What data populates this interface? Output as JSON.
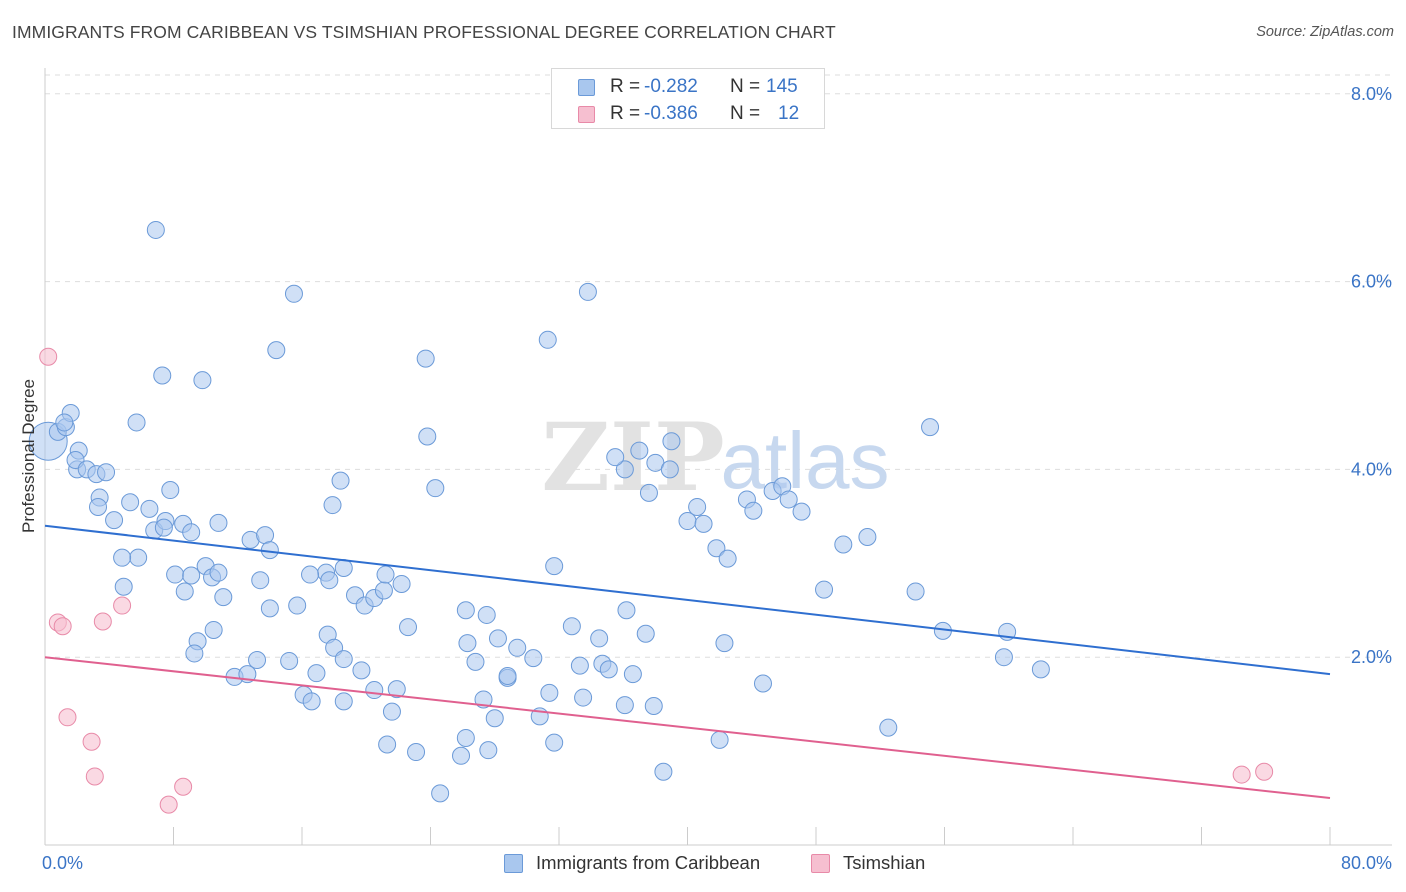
{
  "title": "IMMIGRANTS FROM CARIBBEAN VS TSIMSHIAN PROFESSIONAL DEGREE CORRELATION CHART",
  "source": "Source: ZipAtlas.com",
  "watermark": {
    "zip": "ZIP",
    "atlas": "atlas"
  },
  "legend_stats": [
    {
      "r_label": "R =",
      "r_value": "-0.282",
      "n_label": "N =",
      "n_value": "145"
    },
    {
      "r_label": "R =",
      "r_value": "-0.386",
      "n_label": "N =",
      "n_value": "12"
    }
  ],
  "colors": {
    "blue_fill": "#a9c7ee",
    "blue_stroke": "#6b9ad8",
    "blue_line": "#2f6fd0",
    "pink_fill": "#f6bfd0",
    "pink_stroke": "#e88aa8",
    "pink_line": "#e0608f",
    "tick_text": "#3a74c6",
    "grid": "#dddddd"
  },
  "chart_data": {
    "type": "scatter",
    "title": "IMMIGRANTS FROM CARIBBEAN VS TSIMSHIAN PROFESSIONAL DEGREE CORRELATION CHART",
    "xlabel": "",
    "ylabel": "Professional Degree",
    "xlim": [
      0,
      80
    ],
    "ylim": [
      0,
      8.2
    ],
    "x_tick_labels": [
      "0.0%",
      "80.0%"
    ],
    "y_ticks": [
      2,
      4,
      6,
      8
    ],
    "y_tick_labels": [
      "2.0%",
      "4.0%",
      "6.0%",
      "8.0%"
    ],
    "grid": "horizontal dashed",
    "legend_position": "bottom",
    "series": [
      {
        "name": "Immigrants from Caribbean",
        "color": "#a9c7ee",
        "trend": {
          "x": [
            0,
            80
          ],
          "y": [
            3.4,
            1.82
          ]
        },
        "points": [
          [
            0.2,
            4.3
          ],
          [
            0.8,
            4.4
          ],
          [
            1.3,
            4.45
          ],
          [
            1.6,
            4.6
          ],
          [
            1.2,
            4.5
          ],
          [
            2.1,
            4.2
          ],
          [
            2.0,
            4.0
          ],
          [
            1.9,
            4.1
          ],
          [
            2.6,
            4.0
          ],
          [
            3.2,
            3.95
          ],
          [
            3.4,
            3.7
          ],
          [
            3.8,
            3.97
          ],
          [
            3.3,
            3.6
          ],
          [
            4.3,
            3.46
          ],
          [
            5.3,
            3.65
          ],
          [
            5.7,
            4.5
          ],
          [
            6.8,
            3.35
          ],
          [
            7.5,
            3.45
          ],
          [
            7.8,
            3.78
          ],
          [
            8.6,
            3.42
          ],
          [
            9.1,
            3.33
          ],
          [
            6.5,
            3.58
          ],
          [
            7.4,
            3.38
          ],
          [
            5.8,
            3.06
          ],
          [
            4.8,
            3.06
          ],
          [
            4.9,
            2.75
          ],
          [
            8.1,
            2.88
          ],
          [
            9.1,
            2.87
          ],
          [
            8.7,
            2.7
          ],
          [
            10.0,
            2.97
          ],
          [
            10.4,
            2.85
          ],
          [
            10.8,
            3.43
          ],
          [
            11.1,
            2.64
          ],
          [
            10.8,
            2.9
          ],
          [
            12.8,
            3.25
          ],
          [
            13.7,
            3.3
          ],
          [
            14.0,
            3.14
          ],
          [
            13.4,
            2.82
          ],
          [
            14.0,
            2.52
          ],
          [
            15.7,
            2.55
          ],
          [
            17.5,
            2.9
          ],
          [
            16.5,
            2.88
          ],
          [
            17.7,
            2.82
          ],
          [
            17.9,
            3.62
          ],
          [
            18.6,
            2.95
          ],
          [
            19.3,
            2.66
          ],
          [
            19.9,
            2.55
          ],
          [
            20.5,
            2.63
          ],
          [
            21.1,
            2.71
          ],
          [
            22.2,
            2.78
          ],
          [
            21.2,
            2.88
          ],
          [
            22.6,
            2.32
          ],
          [
            11.8,
            1.79
          ],
          [
            12.6,
            1.82
          ],
          [
            13.2,
            1.97
          ],
          [
            15.2,
            1.96
          ],
          [
            9.5,
            2.17
          ],
          [
            10.5,
            2.29
          ],
          [
            9.3,
            2.04
          ],
          [
            17.6,
            2.24
          ],
          [
            18.0,
            2.1
          ],
          [
            18.6,
            1.98
          ],
          [
            19.7,
            1.86
          ],
          [
            16.9,
            1.83
          ],
          [
            16.1,
            1.6
          ],
          [
            16.6,
            1.53
          ],
          [
            18.6,
            1.53
          ],
          [
            20.5,
            1.65
          ],
          [
            21.9,
            1.66
          ],
          [
            21.6,
            1.42
          ],
          [
            21.3,
            1.07
          ],
          [
            23.1,
            0.99
          ],
          [
            26.2,
            1.14
          ],
          [
            25.9,
            0.95
          ],
          [
            27.6,
            1.01
          ],
          [
            24.6,
            0.55
          ],
          [
            26.3,
            2.15
          ],
          [
            26.2,
            2.5
          ],
          [
            27.5,
            2.45
          ],
          [
            26.8,
            1.95
          ],
          [
            28.2,
            2.2
          ],
          [
            28.8,
            1.78
          ],
          [
            28.8,
            1.8
          ],
          [
            27.3,
            1.55
          ],
          [
            28.0,
            1.35
          ],
          [
            29.4,
            2.1
          ],
          [
            30.4,
            1.99
          ],
          [
            31.4,
            1.62
          ],
          [
            30.8,
            1.37
          ],
          [
            31.7,
            1.09
          ],
          [
            31.7,
            2.97
          ],
          [
            32.8,
            2.33
          ],
          [
            33.3,
            1.91
          ],
          [
            33.5,
            1.57
          ],
          [
            34.5,
            2.2
          ],
          [
            34.7,
            1.93
          ],
          [
            35.1,
            1.87
          ],
          [
            36.2,
            2.5
          ],
          [
            36.1,
            1.49
          ],
          [
            36.6,
            1.82
          ],
          [
            37.9,
            1.48
          ],
          [
            38.5,
            0.78
          ],
          [
            37.4,
            2.25
          ],
          [
            40.0,
            3.45
          ],
          [
            40.6,
            3.6
          ],
          [
            41.8,
            3.16
          ],
          [
            41.0,
            3.42
          ],
          [
            42.5,
            3.05
          ],
          [
            42.3,
            2.15
          ],
          [
            42.0,
            1.12
          ],
          [
            43.7,
            3.68
          ],
          [
            44.1,
            3.56
          ],
          [
            44.7,
            1.72
          ],
          [
            45.3,
            3.77
          ],
          [
            45.9,
            3.82
          ],
          [
            46.3,
            3.68
          ],
          [
            47.1,
            3.55
          ],
          [
            48.5,
            2.72
          ],
          [
            49.7,
            3.2
          ],
          [
            51.2,
            3.28
          ],
          [
            52.5,
            1.25
          ],
          [
            54.2,
            2.7
          ],
          [
            55.9,
            2.28
          ],
          [
            55.1,
            4.45
          ],
          [
            59.7,
            2.0
          ],
          [
            59.9,
            2.27
          ],
          [
            62.0,
            1.87
          ],
          [
            6.9,
            6.55
          ],
          [
            7.3,
            5.0
          ],
          [
            9.8,
            4.95
          ],
          [
            15.5,
            5.87
          ],
          [
            14.4,
            5.27
          ],
          [
            23.7,
            5.18
          ],
          [
            31.3,
            5.38
          ],
          [
            33.8,
            5.89
          ],
          [
            23.8,
            4.35
          ],
          [
            18.4,
            3.88
          ],
          [
            24.3,
            3.8
          ],
          [
            37.6,
            3.75
          ],
          [
            36.1,
            4.0
          ],
          [
            37.0,
            4.2
          ],
          [
            35.5,
            4.13
          ],
          [
            38.0,
            4.07
          ],
          [
            38.9,
            4.0
          ],
          [
            39.0,
            4.3
          ]
        ]
      },
      {
        "name": "Tsimshian",
        "color": "#f6bfd0",
        "trend": {
          "x": [
            0,
            80
          ],
          "y": [
            2.0,
            0.5
          ]
        },
        "points": [
          [
            0.2,
            5.2
          ],
          [
            0.8,
            2.37
          ],
          [
            1.1,
            2.33
          ],
          [
            3.6,
            2.38
          ],
          [
            4.8,
            2.55
          ],
          [
            1.4,
            1.36
          ],
          [
            2.9,
            1.1
          ],
          [
            3.1,
            0.73
          ],
          [
            8.6,
            0.62
          ],
          [
            7.7,
            0.43
          ],
          [
            74.5,
            0.75
          ],
          [
            75.9,
            0.78
          ]
        ]
      }
    ]
  },
  "bottom_legend": [
    "Immigrants from Caribbean",
    "Tsimshian"
  ]
}
